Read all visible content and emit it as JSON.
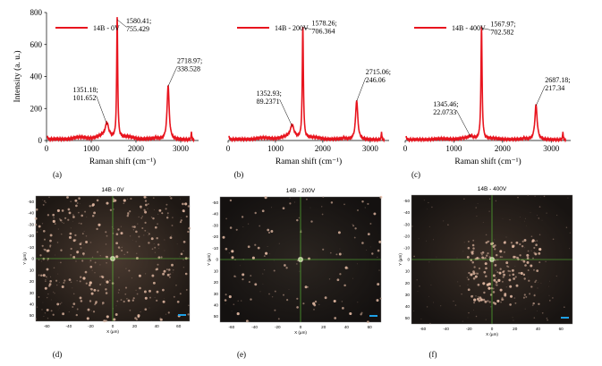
{
  "chart_data": [
    {
      "type": "line",
      "panel": "(a)",
      "series": [
        {
          "name": "14B - 0V"
        }
      ],
      "ylabel": "Intensity (a. u.)",
      "xlabel": "Raman shift (cm⁻¹)",
      "xlim": [
        0,
        3400
      ],
      "ylim": [
        0,
        800
      ],
      "x_ticks": [
        0,
        1000,
        2000,
        3000
      ],
      "y_ticks": [
        0,
        200,
        400,
        600,
        800
      ],
      "peaks": [
        {
          "x": 1351.18,
          "y": 101.652,
          "label": "1351.18;\n101.652"
        },
        {
          "x": 1580.41,
          "y": 755.429,
          "label": "1580.41;\n755.429"
        },
        {
          "x": 2718.97,
          "y": 338.528,
          "label": "2718.97;\n338.528"
        }
      ],
      "color": "#e8141e"
    },
    {
      "type": "line",
      "panel": "(b)",
      "series": [
        {
          "name": "14B - 200V"
        }
      ],
      "xlabel": "Raman shift (cm⁻¹)",
      "xlim": [
        0,
        3400
      ],
      "ylim": [
        0,
        800
      ],
      "x_ticks": [
        0,
        1000,
        2000,
        3000
      ],
      "peaks": [
        {
          "x": 1352.93,
          "y": 89.2371,
          "label": "1352.93;\n89.2371"
        },
        {
          "x": 1578.26,
          "y": 706.364,
          "label": "1578.26;\n706.364"
        },
        {
          "x": 2715.06,
          "y": 246.06,
          "label": "2715.06;\n246.06"
        }
      ],
      "color": "#e8141e"
    },
    {
      "type": "line",
      "panel": "(c)",
      "series": [
        {
          "name": "14B - 400V"
        }
      ],
      "xlabel": "Raman shift (cm⁻¹)",
      "xlim": [
        0,
        3400
      ],
      "ylim": [
        0,
        800
      ],
      "x_ticks": [
        0,
        1000,
        2000,
        3000
      ],
      "peaks": [
        {
          "x": 1345.46,
          "y": 22.0733,
          "label": "1345.46;\n22.0733"
        },
        {
          "x": 1567.97,
          "y": 702.582,
          "label": "1567.97;\n702.582"
        },
        {
          "x": 2687.18,
          "y": 217.34,
          "label": "2687.18;\n217.34"
        }
      ],
      "color": "#e8141e"
    }
  ],
  "micrographs": [
    {
      "panel": "(d)",
      "title": "14B - 0V",
      "xlabel": "X (µm)",
      "ylabel": "Y (µm)",
      "x_ticks": [
        -60,
        -40,
        -20,
        0,
        20,
        40,
        60
      ],
      "y_ticks": [
        -50,
        -40,
        -30,
        -20,
        -10,
        0,
        10,
        20,
        30,
        40,
        50
      ]
    },
    {
      "panel": "(e)",
      "title": "14B - 200V",
      "xlabel": "X (µm)",
      "ylabel": "Y (µm)",
      "x_ticks": [
        -60,
        -40,
        -20,
        0,
        20,
        40,
        60
      ],
      "y_ticks": [
        -50,
        -40,
        -30,
        -20,
        -10,
        0,
        10,
        20,
        30,
        40,
        50
      ]
    },
    {
      "panel": "(f)",
      "title": "14B - 400V",
      "xlabel": "X (µm)",
      "ylabel": "Y (µm)",
      "x_ticks": [
        -60,
        -40,
        -20,
        0,
        20,
        40,
        60
      ],
      "y_ticks": [
        -50,
        -40,
        -30,
        -20,
        -10,
        0,
        10,
        20,
        30,
        40,
        50
      ]
    }
  ],
  "colors": {
    "spectrum": "#e8141e",
    "crosshair": "#5fcf3a",
    "scalebar": "#1ea0e6"
  }
}
